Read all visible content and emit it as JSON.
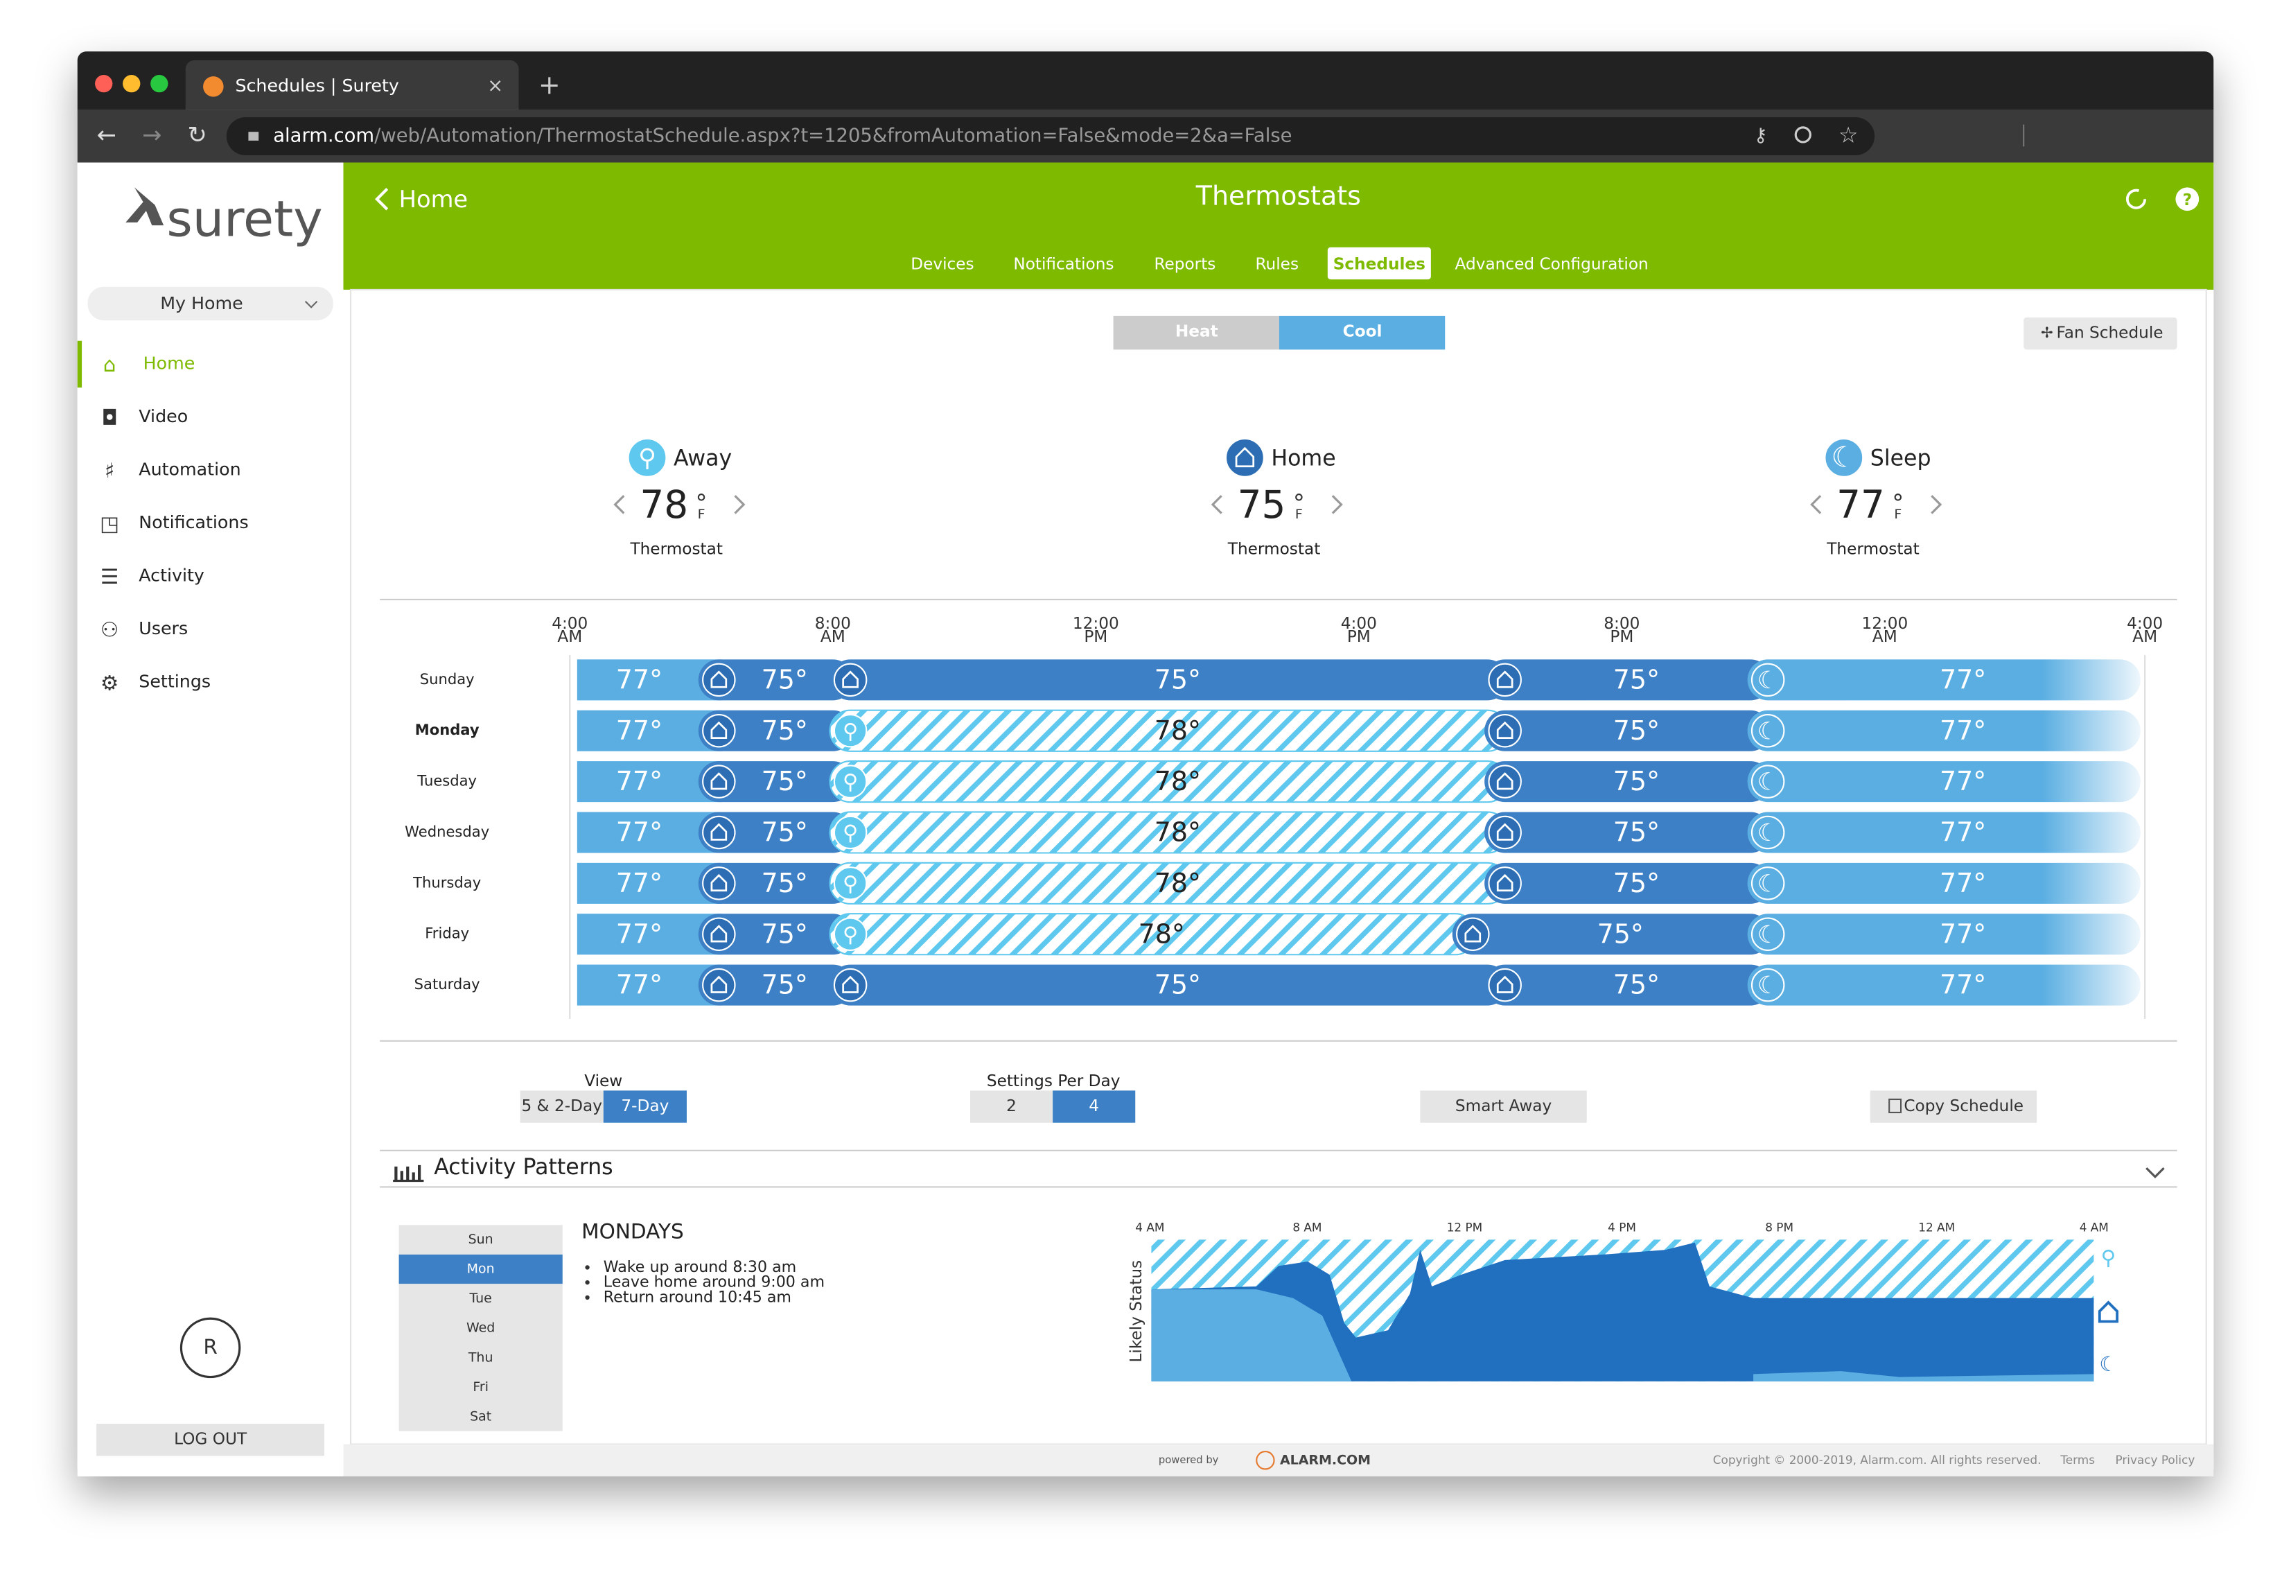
{
  "browser": {
    "tab_title": "Schedules | Surety",
    "url_host": "alarm.com",
    "url_path": "/web/Automation/ThermostatSchedule.aspx?t=1205&fromAutomation=False&mode=2&a=False"
  },
  "sidebar": {
    "logo": "surety",
    "location": "My Home",
    "nav": [
      "Home",
      "Video",
      "Automation",
      "Notifications",
      "Activity",
      "Users",
      "Settings"
    ],
    "active_nav": 0,
    "user_initial": "R",
    "logout": "LOG OUT"
  },
  "header": {
    "back": "Home",
    "title": "Thermostats",
    "tabs": [
      "Devices",
      "Notifications",
      "Reports",
      "Rules",
      "Schedules",
      "Advanced Configuration"
    ],
    "active_tab": 4
  },
  "mode_toggle": {
    "options": [
      "Heat",
      "Cool"
    ],
    "active": 1
  },
  "fan_schedule": "Fan Schedule",
  "presets": [
    {
      "name": "Away",
      "mode": "away",
      "temp": 78,
      "unit": "F",
      "device": "Thermostat"
    },
    {
      "name": "Home",
      "mode": "home",
      "temp": 75,
      "unit": "F",
      "device": "Thermostat"
    },
    {
      "name": "Sleep",
      "mode": "sleep",
      "temp": 77,
      "unit": "F",
      "device": "Thermostat"
    }
  ],
  "schedule": {
    "times": [
      {
        "time": "4:00",
        "period": "AM"
      },
      {
        "time": "8:00",
        "period": "AM"
      },
      {
        "time": "12:00",
        "period": "PM"
      },
      {
        "time": "4:00",
        "period": "PM"
      },
      {
        "time": "8:00",
        "period": "PM"
      },
      {
        "time": "12:00",
        "period": "AM"
      },
      {
        "time": "4:00",
        "period": "AM"
      }
    ],
    "selected_day": 1,
    "days": [
      {
        "name": "Sunday",
        "segments": [
          {
            "mode": "sleep",
            "temp": "77°"
          },
          {
            "mode": "home",
            "temp": "75°"
          },
          {
            "mode": "home",
            "temp": "75°"
          },
          {
            "mode": "home",
            "temp": "75°"
          },
          {
            "mode": "sleep",
            "temp": "77°"
          }
        ]
      },
      {
        "name": "Monday",
        "segments": [
          {
            "mode": "sleep",
            "temp": "77°"
          },
          {
            "mode": "home",
            "temp": "75°"
          },
          {
            "mode": "away",
            "temp": "78°"
          },
          {
            "mode": "home",
            "temp": "75°"
          },
          {
            "mode": "sleep",
            "temp": "77°"
          }
        ]
      },
      {
        "name": "Tuesday",
        "segments": [
          {
            "mode": "sleep",
            "temp": "77°"
          },
          {
            "mode": "home",
            "temp": "75°"
          },
          {
            "mode": "away",
            "temp": "78°"
          },
          {
            "mode": "home",
            "temp": "75°"
          },
          {
            "mode": "sleep",
            "temp": "77°"
          }
        ]
      },
      {
        "name": "Wednesday",
        "segments": [
          {
            "mode": "sleep",
            "temp": "77°"
          },
          {
            "mode": "home",
            "temp": "75°"
          },
          {
            "mode": "away",
            "temp": "78°"
          },
          {
            "mode": "home",
            "temp": "75°"
          },
          {
            "mode": "sleep",
            "temp": "77°"
          }
        ]
      },
      {
        "name": "Thursday",
        "segments": [
          {
            "mode": "sleep",
            "temp": "77°"
          },
          {
            "mode": "home",
            "temp": "75°"
          },
          {
            "mode": "away",
            "temp": "78°"
          },
          {
            "mode": "home",
            "temp": "75°"
          },
          {
            "mode": "sleep",
            "temp": "77°"
          }
        ]
      },
      {
        "name": "Friday",
        "segments": [
          {
            "mode": "sleep",
            "temp": "77°"
          },
          {
            "mode": "home",
            "temp": "75°"
          },
          {
            "mode": "away",
            "temp": "78°"
          },
          {
            "mode": "home",
            "temp": "75°"
          },
          {
            "mode": "sleep",
            "temp": "77°"
          }
        ]
      },
      {
        "name": "Saturday",
        "segments": [
          {
            "mode": "sleep",
            "temp": "77°"
          },
          {
            "mode": "home",
            "temp": "75°"
          },
          {
            "mode": "home",
            "temp": "75°"
          },
          {
            "mode": "home",
            "temp": "75°"
          },
          {
            "mode": "sleep",
            "temp": "77°"
          }
        ]
      }
    ]
  },
  "controls": {
    "view": {
      "label": "View",
      "options": [
        "5 & 2-Day",
        "7-Day"
      ],
      "active": 1
    },
    "settings_per_day": {
      "label": "Settings Per Day",
      "options": [
        "2",
        "4"
      ],
      "active": 1
    },
    "smart_away": "Smart Away",
    "copy_schedule": "Copy Schedule"
  },
  "activity": {
    "title": "Activity Patterns",
    "days": [
      "Sun",
      "Mon",
      "Tue",
      "Wed",
      "Thu",
      "Fri",
      "Sat"
    ],
    "active_day": 1,
    "heading": "MONDAYS",
    "notes": [
      "Wake up around 8:30 am",
      "Leave home around 9:00 am",
      "Return around 10:45 am"
    ],
    "axis_labels": [
      "4 AM",
      "8 AM",
      "12 PM",
      "4 PM",
      "8 PM",
      "12 AM",
      "4 AM"
    ],
    "y_label": "Likely Status"
  },
  "footer": {
    "powered_by": "powered by",
    "brand": "ALARM.COM",
    "copyright": "Copyright © 2000-2019, Alarm.com. All rights reserved.",
    "links": [
      "Terms",
      "Privacy Policy"
    ]
  }
}
